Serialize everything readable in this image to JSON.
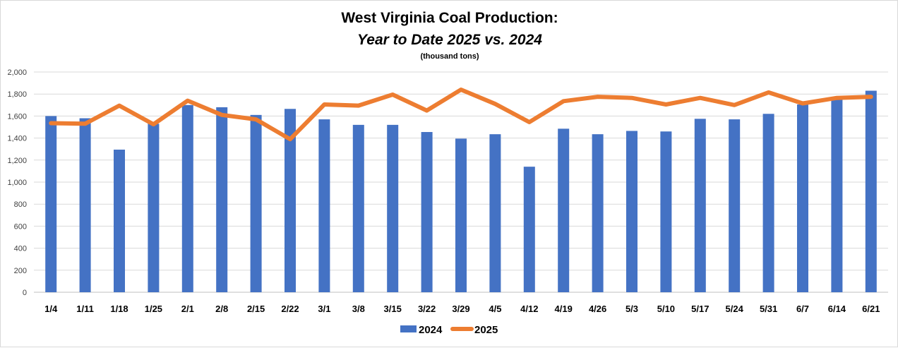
{
  "chart_data": {
    "type": "bar",
    "title": "West Virginia Coal Production:",
    "subtitle": "Year to Date 2025 vs. 2024",
    "unit_note": "(thousand tons)",
    "ylim": [
      0,
      2000
    ],
    "yticks": [
      "0",
      "200",
      "400",
      "600",
      "800",
      "1,000",
      "1,200",
      "1,400",
      "1,600",
      "1,800",
      "2,000"
    ],
    "ytick_values": [
      0,
      200,
      400,
      600,
      800,
      1000,
      1200,
      1400,
      1600,
      1800,
      2000
    ],
    "grid": true,
    "legend_position": "bottom",
    "categories": [
      "1/4",
      "1/11",
      "1/18",
      "1/25",
      "2/1",
      "2/8",
      "2/15",
      "2/22",
      "3/1",
      "3/8",
      "3/15",
      "3/22",
      "3/29",
      "4/5",
      "4/12",
      "4/19",
      "4/26",
      "5/3",
      "5/10",
      "5/17",
      "5/24",
      "5/31",
      "6/7",
      "6/14",
      "6/21"
    ],
    "series": [
      {
        "name": "2024",
        "type": "bar",
        "color": "#4472C4",
        "values": [
          1600,
          1580,
          1295,
          1530,
          1700,
          1680,
          1610,
          1665,
          1570,
          1520,
          1520,
          1455,
          1395,
          1435,
          1140,
          1485,
          1435,
          1465,
          1460,
          1575,
          1570,
          1620,
          1705,
          1760,
          1830
        ]
      },
      {
        "name": "2025",
        "type": "line",
        "color": "#ED7D31",
        "values": [
          1535,
          1530,
          1695,
          1525,
          1740,
          1610,
          1570,
          1390,
          1705,
          1695,
          1795,
          1650,
          1840,
          1710,
          1545,
          1735,
          1775,
          1765,
          1705,
          1765,
          1700,
          1815,
          1715,
          1765,
          1775
        ]
      }
    ]
  }
}
